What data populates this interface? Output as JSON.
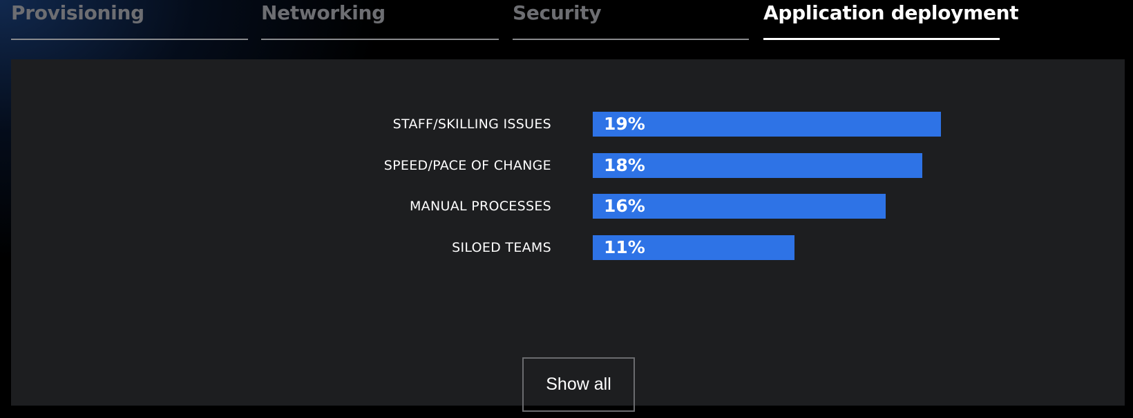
{
  "tabs": [
    {
      "label": "Provisioning",
      "active": false
    },
    {
      "label": "Networking",
      "active": false
    },
    {
      "label": "Security",
      "active": false
    },
    {
      "label": "Application deployment",
      "active": true
    }
  ],
  "chart_data": {
    "type": "bar",
    "orientation": "horizontal",
    "categories": [
      "STAFF/SKILLING ISSUES",
      "SPEED/PACE OF CHANGE",
      "MANUAL PROCESSES",
      "SILOED TEAMS"
    ],
    "values": [
      19,
      18,
      16,
      11
    ],
    "value_labels": [
      "19%",
      "18%",
      "16%",
      "11%"
    ],
    "unit": "%",
    "bar_color": "#2e73e6"
  },
  "actions": {
    "show_all_label": "Show all"
  },
  "colors": {
    "panel": "#1d1e20",
    "active_tab": "#ffffff",
    "inactive_tab": "#6d6e72"
  }
}
